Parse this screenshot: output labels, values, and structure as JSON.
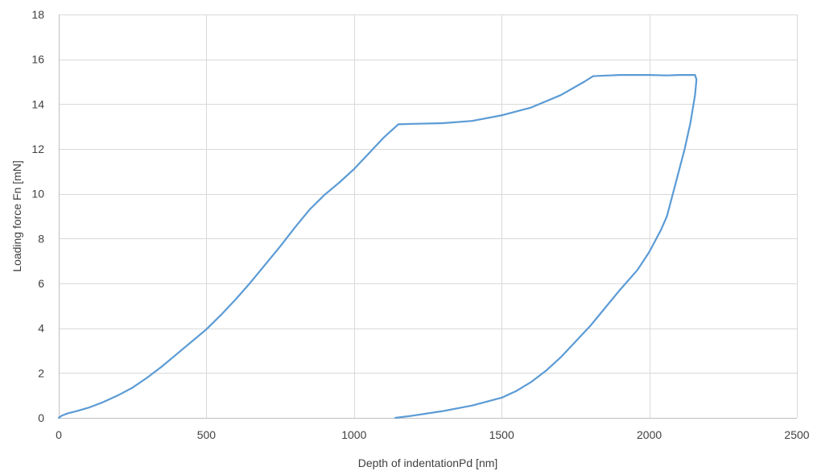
{
  "chart_data": {
    "type": "line",
    "title": "",
    "xlabel": "Depth of indentationPd [nm]",
    "ylabel": "Loading force Fn [mN]",
    "xlim": [
      0,
      2500
    ],
    "ylim": [
      0,
      18
    ],
    "xticks": [
      0,
      500,
      1000,
      1500,
      2000,
      2500
    ],
    "yticks": [
      0,
      2,
      4,
      6,
      8,
      10,
      12,
      14,
      16,
      18
    ],
    "grid": "vertical and horizontal",
    "legend": "none",
    "series": [
      {
        "color": "#5b9bd5",
        "points": [
          [
            0,
            0
          ],
          [
            10,
            0.1
          ],
          [
            30,
            0.2
          ],
          [
            60,
            0.3
          ],
          [
            100,
            0.45
          ],
          [
            150,
            0.7
          ],
          [
            200,
            1.0
          ],
          [
            250,
            1.35
          ],
          [
            300,
            1.8
          ],
          [
            350,
            2.3
          ],
          [
            400,
            2.85
          ],
          [
            450,
            3.4
          ],
          [
            500,
            3.95
          ],
          [
            550,
            4.6
          ],
          [
            600,
            5.3
          ],
          [
            650,
            6.05
          ],
          [
            700,
            6.85
          ],
          [
            750,
            7.65
          ],
          [
            800,
            8.5
          ],
          [
            850,
            9.3
          ],
          [
            900,
            9.95
          ],
          [
            950,
            10.5
          ],
          [
            1000,
            11.1
          ],
          [
            1050,
            11.8
          ],
          [
            1100,
            12.5
          ],
          [
            1150,
            13.1
          ],
          [
            1200,
            13.12
          ],
          [
            1300,
            13.15
          ],
          [
            1400,
            13.25
          ],
          [
            1500,
            13.5
          ],
          [
            1600,
            13.85
          ],
          [
            1700,
            14.4
          ],
          [
            1780,
            15.0
          ],
          [
            1810,
            15.25
          ],
          [
            1900,
            15.3
          ],
          [
            2000,
            15.3
          ],
          [
            2060,
            15.28
          ],
          [
            2100,
            15.3
          ],
          [
            2155,
            15.3
          ],
          [
            2160,
            15.1
          ],
          [
            2155,
            14.4
          ],
          [
            2140,
            13.2
          ],
          [
            2120,
            12.0
          ],
          [
            2100,
            11.0
          ],
          [
            2080,
            10.0
          ],
          [
            2060,
            9.0
          ],
          [
            2040,
            8.4
          ],
          [
            2020,
            7.9
          ],
          [
            2000,
            7.4
          ],
          [
            1960,
            6.6
          ],
          [
            1900,
            5.7
          ],
          [
            1850,
            4.9
          ],
          [
            1800,
            4.1
          ],
          [
            1750,
            3.4
          ],
          [
            1700,
            2.7
          ],
          [
            1650,
            2.1
          ],
          [
            1600,
            1.6
          ],
          [
            1550,
            1.2
          ],
          [
            1500,
            0.9
          ],
          [
            1400,
            0.55
          ],
          [
            1300,
            0.3
          ],
          [
            1200,
            0.1
          ],
          [
            1140,
            0
          ]
        ]
      }
    ]
  }
}
